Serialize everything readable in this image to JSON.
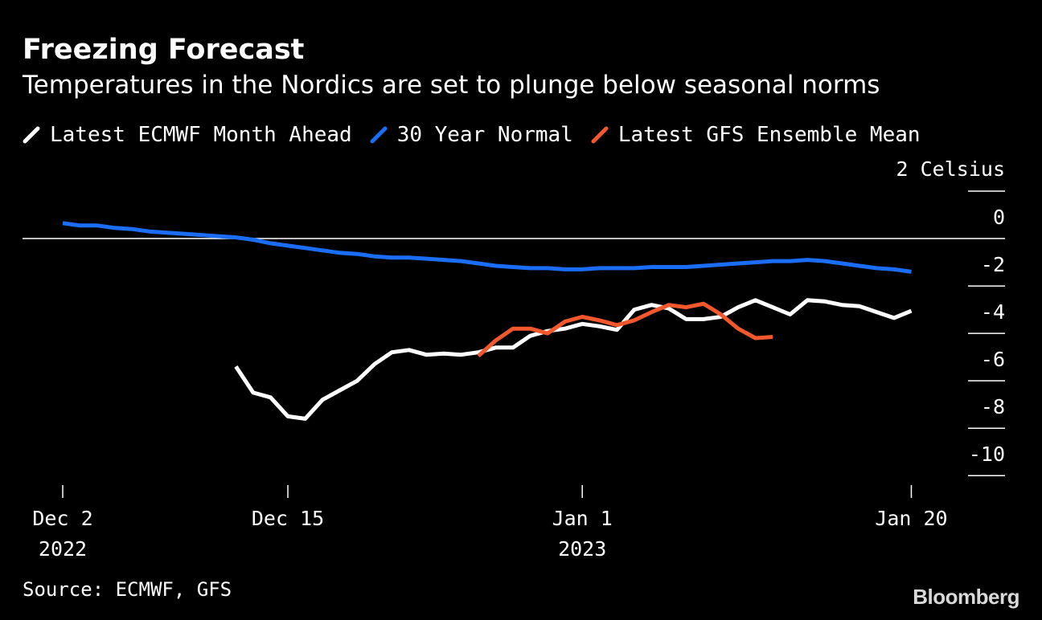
{
  "chart_data": {
    "type": "line",
    "title": "Freezing Forecast",
    "subtitle": "Temperatures in the Nordics are set to plunge below seasonal norms",
    "unit_label": "2 Celsius",
    "y_ticks": [
      "0",
      "-2",
      "-4",
      "-6",
      "-8",
      "-10"
    ],
    "ylim": [
      -10.5,
      2
    ],
    "xlim": [
      1,
      51
    ],
    "x_ticks": [
      {
        "day": 1,
        "label": "Dec 2",
        "sublabel": "2022"
      },
      {
        "day": 14,
        "label": "Dec 15",
        "sublabel": ""
      },
      {
        "day": 31,
        "label": "Jan 1",
        "sublabel": "2023"
      },
      {
        "day": 50,
        "label": "Jan 20",
        "sublabel": ""
      }
    ],
    "x_axis_note": "day index counted from Dec 1 2022 (Dec 2 = 1)",
    "series": [
      {
        "name": "Latest ECMWF Month Ahead",
        "color": "#ffffff",
        "start_day": 11,
        "values": [
          -5.4,
          -6.5,
          -6.7,
          -7.5,
          -7.6,
          -6.8,
          -6.4,
          -6.0,
          -5.3,
          -4.8,
          -4.7,
          -4.9,
          -4.85,
          -4.9,
          -4.8,
          -4.6,
          -4.6,
          -4.1,
          -3.9,
          -3.8,
          -3.6,
          -3.7,
          -3.85,
          -3.0,
          -2.8,
          -2.95,
          -3.4,
          -3.4,
          -3.3,
          -2.9,
          -2.6,
          -2.9,
          -3.2,
          -2.6,
          -2.65,
          -2.8,
          -2.85,
          -3.1,
          -3.35,
          -3.05
        ]
      },
      {
        "name": "30 Year Normal",
        "color": "#1a6ef5",
        "start_day": 1,
        "values": [
          0.65,
          0.55,
          0.55,
          0.45,
          0.4,
          0.3,
          0.25,
          0.2,
          0.15,
          0.1,
          0.05,
          -0.05,
          -0.2,
          -0.3,
          -0.4,
          -0.5,
          -0.6,
          -0.65,
          -0.75,
          -0.8,
          -0.8,
          -0.85,
          -0.9,
          -0.95,
          -1.05,
          -1.15,
          -1.2,
          -1.25,
          -1.25,
          -1.3,
          -1.3,
          -1.25,
          -1.25,
          -1.25,
          -1.2,
          -1.2,
          -1.2,
          -1.15,
          -1.1,
          -1.05,
          -1.0,
          -0.95,
          -0.95,
          -0.9,
          -0.95,
          -1.05,
          -1.15,
          -1.25,
          -1.3,
          -1.4
        ]
      },
      {
        "name": "Latest GFS Ensemble Mean",
        "color": "#f2582b",
        "start_day": 25,
        "values": [
          -4.95,
          -4.3,
          -3.8,
          -3.8,
          -4.0,
          -3.5,
          -3.3,
          -3.45,
          -3.65,
          -3.45,
          -3.1,
          -2.8,
          -2.9,
          -2.75,
          -3.2,
          -3.8,
          -4.2,
          -4.15
        ]
      }
    ],
    "reference_line": {
      "value": 0,
      "color": "#ffffff"
    }
  },
  "legend": {
    "items": [
      {
        "label": "Latest ECMWF Month Ahead",
        "color": "#ffffff"
      },
      {
        "label": "30 Year Normal",
        "color": "#1a6ef5"
      },
      {
        "label": "Latest GFS Ensemble Mean",
        "color": "#f2582b"
      }
    ]
  },
  "footer": {
    "source": "Source: ECMWF, GFS",
    "brand": "Bloomberg"
  }
}
